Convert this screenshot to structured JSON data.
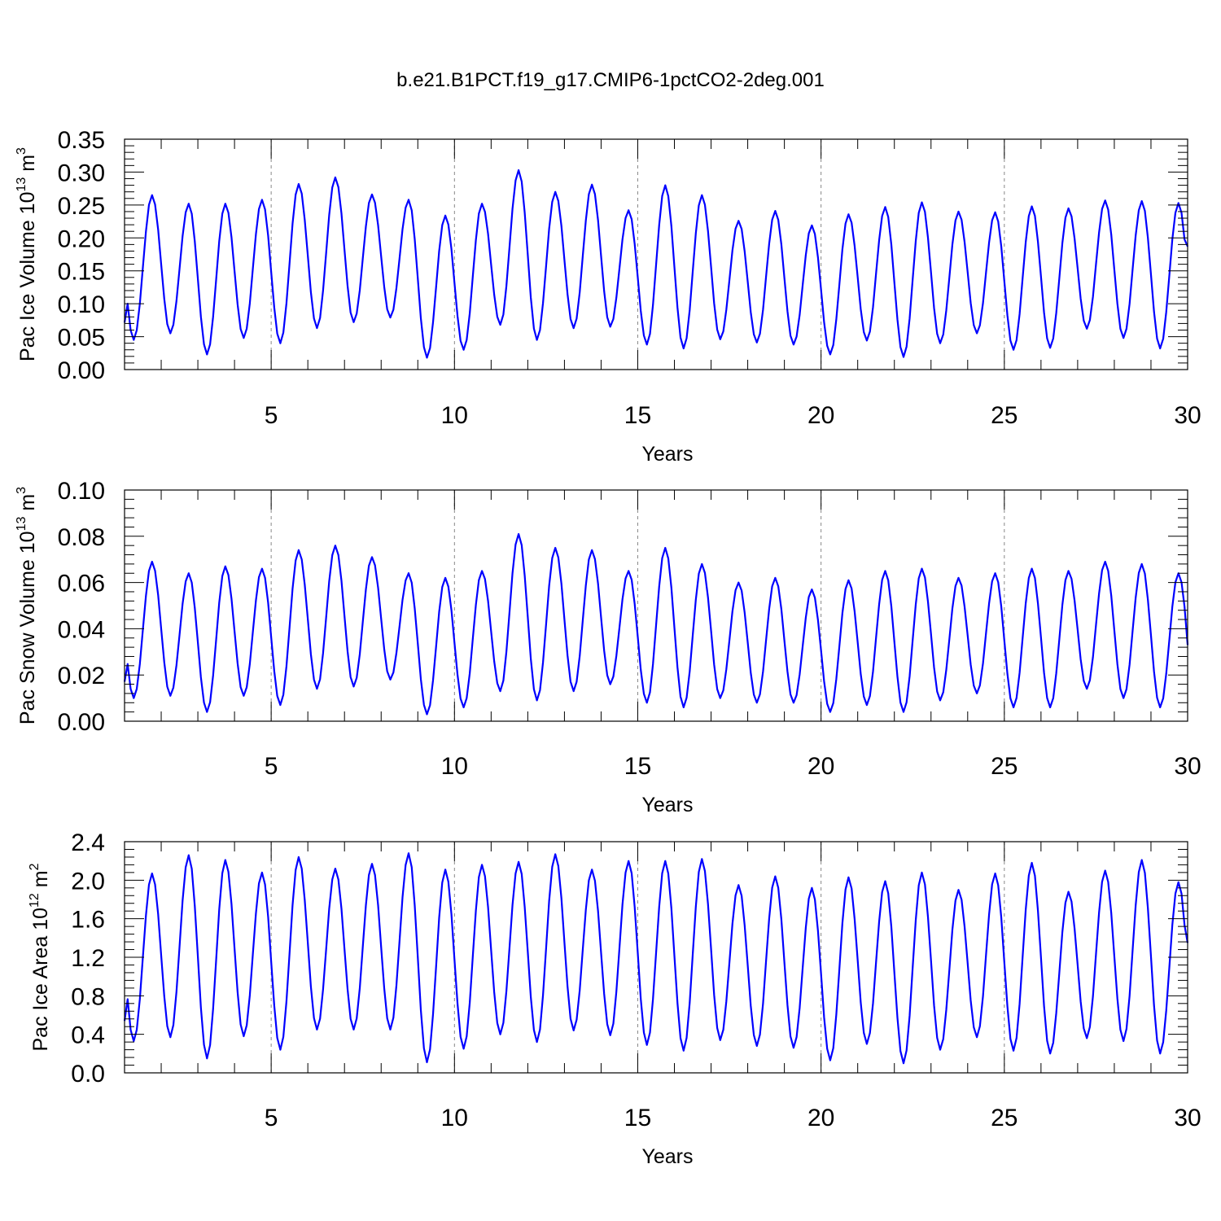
{
  "page_title": "b.e21.B1PCT.f19_g17.CMIP6-1pctCO2-2deg.001",
  "chart_data": [
    {
      "type": "line",
      "ylabel": {
        "main": "Pac Ice Volume 10",
        "sup1": "13",
        "mid": " m",
        "sup2": "3"
      },
      "xlabel": "Years",
      "xlim": [
        1,
        30
      ],
      "ylim": [
        0,
        0.35
      ],
      "x_ticks": [
        5,
        10,
        15,
        20,
        25,
        30
      ],
      "y_ticks": [
        "0.00",
        "0.05",
        "0.10",
        "0.15",
        "0.20",
        "0.25",
        "0.30",
        "0.35"
      ],
      "y_tick_step": 0.05,
      "y_minor_step": 0.01,
      "dashed_ref_x": [
        5,
        10,
        15,
        20,
        25
      ],
      "grid": false,
      "line_color": "#0000ff",
      "series": [
        {
          "start_x": 1.0,
          "months": 12,
          "maxima": [
            0.265,
            0.252,
            0.252,
            0.258,
            0.282,
            0.292,
            0.266,
            0.258,
            0.234,
            0.252,
            0.303,
            0.27,
            0.281,
            0.242,
            0.28,
            0.265,
            0.226,
            0.241,
            0.219,
            0.236,
            0.247,
            0.254,
            0.24,
            0.239,
            0.248,
            0.245,
            0.257,
            0.256,
            0.253
          ],
          "minima": [
            0.045,
            0.055,
            0.023,
            0.048,
            0.04,
            0.063,
            0.072,
            0.079,
            0.018,
            0.03,
            0.068,
            0.045,
            0.063,
            0.065,
            0.038,
            0.032,
            0.046,
            0.041,
            0.038,
            0.023,
            0.044,
            0.019,
            0.04,
            0.055,
            0.03,
            0.033,
            0.062,
            0.048,
            0.032
          ],
          "end_value": 0.187
        }
      ]
    },
    {
      "type": "line",
      "ylabel": {
        "main": "Pac Snow Volume 10",
        "sup1": "13",
        "mid": " m",
        "sup2": "3"
      },
      "xlabel": "Years",
      "xlim": [
        1,
        30
      ],
      "ylim": [
        0,
        0.1
      ],
      "x_ticks": [
        5,
        10,
        15,
        20,
        25,
        30
      ],
      "y_ticks": [
        "0.00",
        "0.02",
        "0.04",
        "0.06",
        "0.08",
        "0.10"
      ],
      "y_tick_step": 0.02,
      "y_minor_step": 0.004,
      "dashed_ref_x": [
        5,
        10,
        15,
        20,
        25
      ],
      "grid": false,
      "line_color": "#0000ff",
      "series": [
        {
          "start_x": 1.0,
          "months": 12,
          "maxima": [
            0.069,
            0.064,
            0.067,
            0.066,
            0.074,
            0.076,
            0.071,
            0.064,
            0.062,
            0.065,
            0.081,
            0.075,
            0.074,
            0.065,
            0.075,
            0.068,
            0.06,
            0.062,
            0.057,
            0.061,
            0.065,
            0.066,
            0.062,
            0.064,
            0.066,
            0.065,
            0.069,
            0.068,
            0.064
          ],
          "minima": [
            0.01,
            0.011,
            0.004,
            0.011,
            0.007,
            0.014,
            0.015,
            0.018,
            0.003,
            0.006,
            0.013,
            0.009,
            0.013,
            0.016,
            0.008,
            0.006,
            0.01,
            0.008,
            0.008,
            0.004,
            0.007,
            0.004,
            0.009,
            0.012,
            0.006,
            0.006,
            0.014,
            0.01,
            0.006
          ],
          "end_value": 0.033
        }
      ]
    },
    {
      "type": "line",
      "ylabel": {
        "main": "Pac Ice Area 10",
        "sup1": "12",
        "mid": " m",
        "sup2": "2"
      },
      "xlabel": "Years",
      "xlim": [
        1,
        30
      ],
      "ylim": [
        0,
        2.4
      ],
      "x_ticks": [
        5,
        10,
        15,
        20,
        25,
        30
      ],
      "y_ticks": [
        "0.0",
        "0.4",
        "0.8",
        "1.2",
        "1.6",
        "2.0",
        "2.4"
      ],
      "y_tick_step": 0.4,
      "y_minor_step": 0.08,
      "dashed_ref_x": [
        5,
        10,
        15,
        20,
        25
      ],
      "grid": false,
      "line_color": "#0000ff",
      "series": [
        {
          "start_x": 1.0,
          "months": 12,
          "maxima": [
            2.07,
            2.26,
            2.21,
            2.08,
            2.24,
            2.12,
            2.17,
            2.28,
            2.11,
            2.16,
            2.19,
            2.27,
            2.11,
            2.2,
            2.2,
            2.22,
            1.95,
            2.04,
            1.92,
            2.03,
            1.99,
            2.08,
            1.9,
            2.07,
            2.18,
            1.88,
            2.1,
            2.21,
            1.98
          ],
          "minima": [
            0.33,
            0.37,
            0.15,
            0.38,
            0.24,
            0.45,
            0.45,
            0.45,
            0.11,
            0.25,
            0.4,
            0.32,
            0.44,
            0.39,
            0.29,
            0.23,
            0.34,
            0.28,
            0.26,
            0.13,
            0.3,
            0.1,
            0.24,
            0.37,
            0.23,
            0.2,
            0.36,
            0.33,
            0.2
          ],
          "end_value": 1.35
        }
      ]
    }
  ]
}
